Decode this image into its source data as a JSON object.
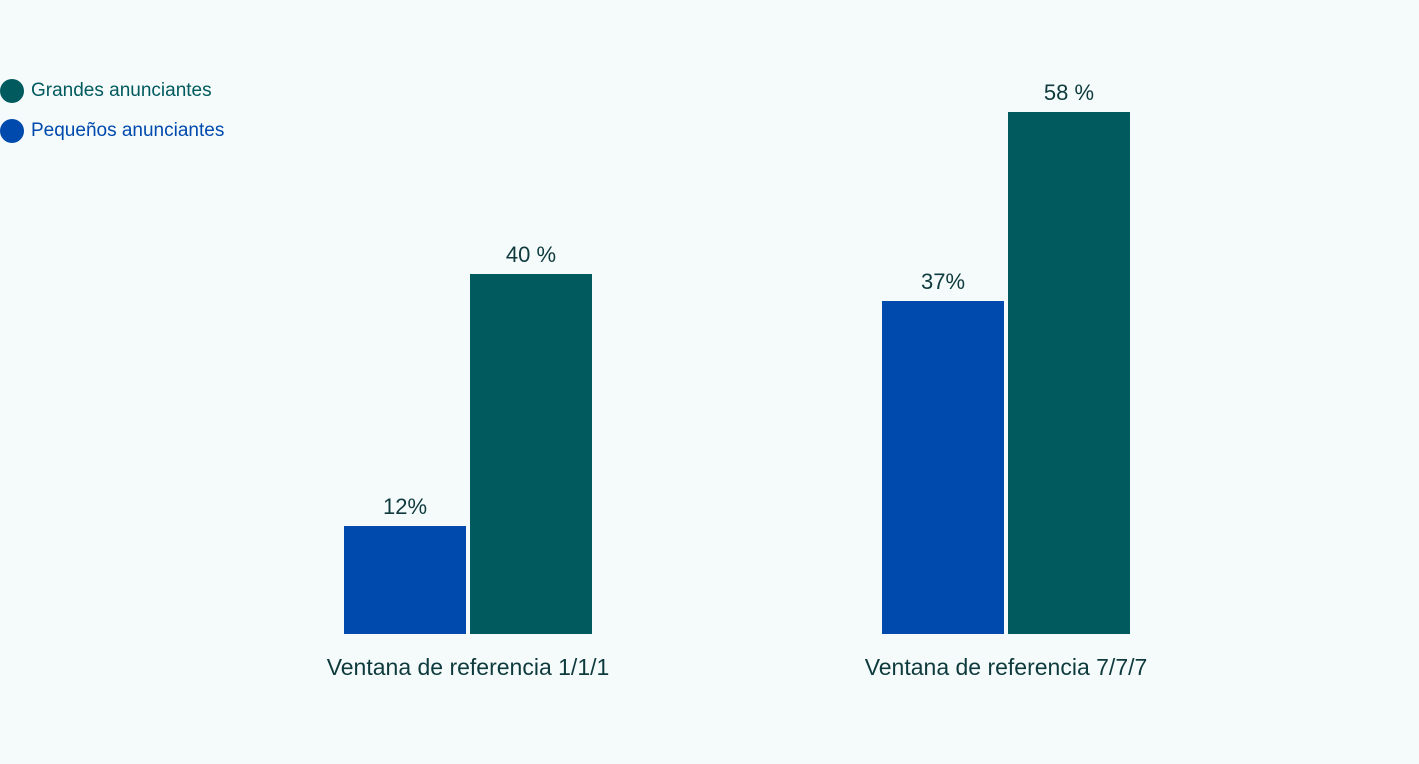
{
  "chart_data": {
    "type": "bar",
    "title": "",
    "xlabel": "",
    "ylabel": "",
    "ylim": [
      0,
      58
    ],
    "grid": false,
    "legend_position": "top-left",
    "categories": [
      "Ventana de referencia 1/1/1",
      "Ventana de referencia 7/7/7"
    ],
    "series": [
      {
        "name": "Pequeños anunciantes",
        "color": "#004aad",
        "values": [
          12,
          37
        ],
        "labels": [
          "12%",
          "37%"
        ]
      },
      {
        "name": "Grandes anunciantes",
        "color": "#005a5e",
        "values": [
          40,
          58
        ],
        "labels": [
          "40 %",
          "58 %"
        ]
      }
    ]
  },
  "legend": [
    {
      "label": "Grandes anunciantes",
      "color": "#005a5e"
    },
    {
      "label": "Pequeños anunciantes",
      "color": "#004aad"
    }
  ],
  "colors": {
    "background": "#f5fbfb",
    "text_dark": "#0e3a3d"
  }
}
